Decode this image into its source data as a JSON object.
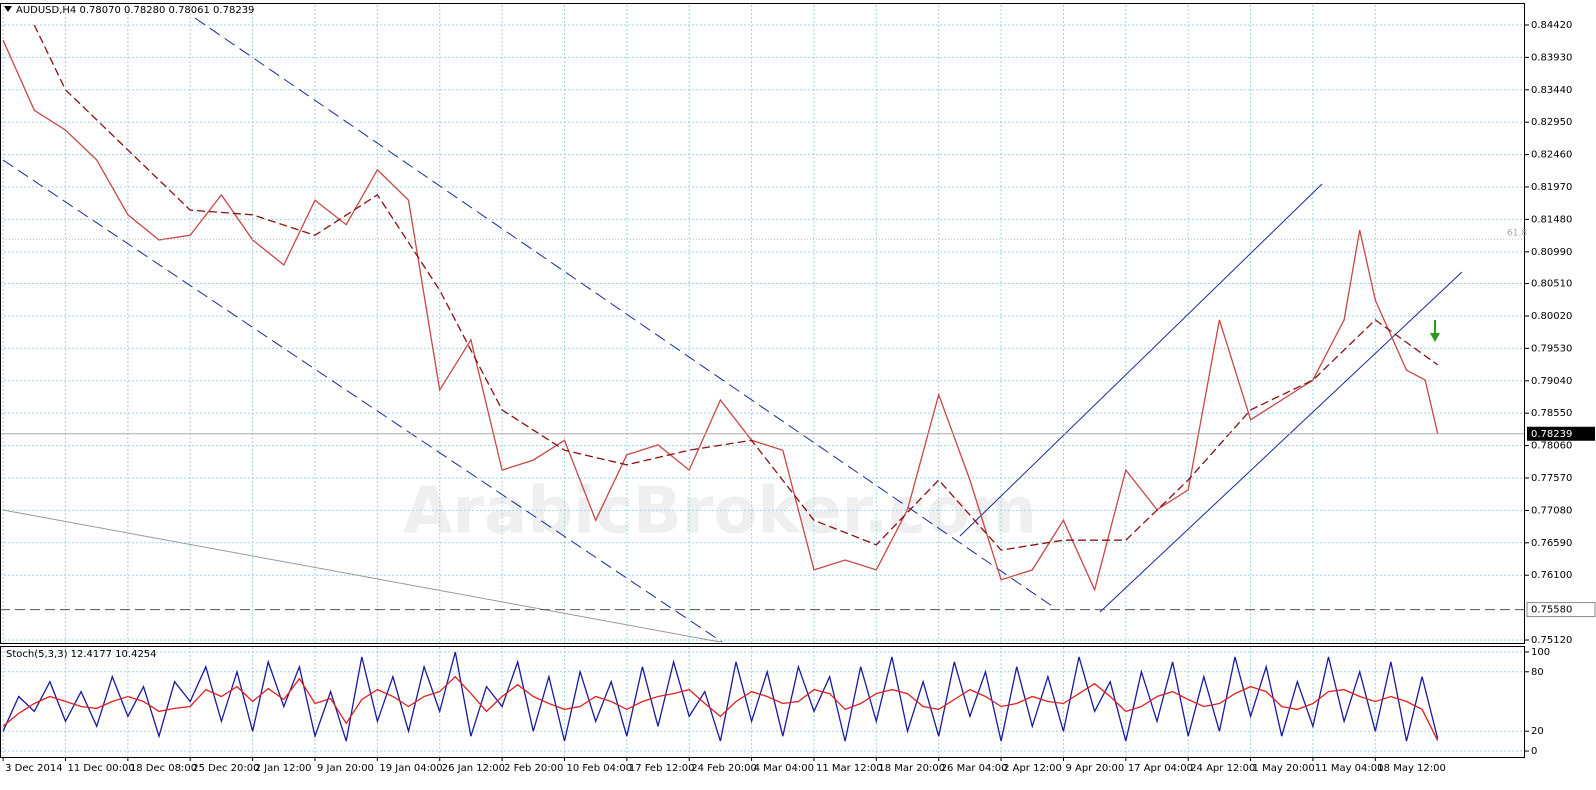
{
  "chart_data": [
    {
      "type": "line",
      "title": "AUDUSD,H4  0.78070 0.78280 0.78061 0.78239",
      "watermark": "ArabicBroker.com",
      "xlim": [
        -0.05,
        24.4
      ],
      "ylim": [
        0.75075,
        0.84722
      ],
      "yticks": [
        {
          "value": 0.8442,
          "label": "0.84420"
        },
        {
          "value": 0.8393,
          "label": "0.83930"
        },
        {
          "value": 0.8344,
          "label": "0.83440"
        },
        {
          "value": 0.8295,
          "label": "0.82950"
        },
        {
          "value": 0.8246,
          "label": "0.82460"
        },
        {
          "value": 0.8197,
          "label": "0.81970"
        },
        {
          "value": 0.8148,
          "label": "0.81480"
        },
        {
          "value": 0.8099,
          "label": "0.80990"
        },
        {
          "value": 0.8051,
          "label": "0.80510"
        },
        {
          "value": 0.8002,
          "label": "0.80020"
        },
        {
          "value": 0.7953,
          "label": "0.79530"
        },
        {
          "value": 0.7904,
          "label": "0.79040"
        },
        {
          "value": 0.7855,
          "label": "0.78550"
        },
        {
          "value": 0.7806,
          "label": "0.78060"
        },
        {
          "value": 0.7757,
          "label": "0.77570"
        },
        {
          "value": 0.7708,
          "label": "0.77080"
        },
        {
          "value": 0.7659,
          "label": "0.76590"
        },
        {
          "value": 0.761,
          "label": "0.76100"
        },
        {
          "value": 0.7512,
          "label": "0.75120"
        }
      ],
      "grid": true,
      "series": [
        {
          "color": "#c84848",
          "x": [
            0,
            0.5,
            1,
            1.5,
            2,
            2.5,
            3,
            3.5,
            4,
            4.5,
            5,
            5.5,
            6,
            6.5,
            7,
            7.5,
            8,
            8.5,
            9,
            9.5,
            10,
            10.5,
            11,
            11.5,
            12,
            12.5,
            13,
            13.5,
            14,
            14.5,
            15,
            15.5,
            16,
            16.5,
            17,
            17.5,
            18,
            18.5,
            19,
            19.5,
            20,
            20.5,
            21,
            21.5,
            21.75,
            22,
            22.5,
            22.8,
            23
          ],
          "values": [
            0.8419,
            0.8313,
            0.8283,
            0.8238,
            0.8155,
            0.8117,
            0.8124,
            0.8185,
            0.8117,
            0.8079,
            0.8177,
            0.814,
            0.8223,
            0.8177,
            0.789,
            0.7966,
            0.7769,
            0.7784,
            0.7814,
            0.7693,
            0.7792,
            0.7807,
            0.7769,
            0.7875,
            0.7814,
            0.7799,
            0.7618,
            0.7633,
            0.7618,
            0.7709,
            0.7883,
            0.7754,
            0.7603,
            0.7618,
            0.7693,
            0.7588,
            0.7769,
            0.7709,
            0.7739,
            0.7996,
            0.7845,
            0.7875,
            0.7905,
            0.7996,
            0.8132,
            0.8026,
            0.792,
            0.7905,
            0.7824
          ]
        },
        {
          "color": "#8b1010",
          "dashed": true,
          "x": [
            0.5,
            1,
            2,
            3,
            4,
            5,
            6,
            7,
            8,
            9,
            10,
            11,
            12,
            13,
            14,
            15,
            16,
            17,
            18,
            19,
            20,
            21,
            22,
            23
          ],
          "values": [
            0.8442,
            0.8344,
            0.8253,
            0.8162,
            0.8155,
            0.8124,
            0.8185,
            0.8041,
            0.786,
            0.7799,
            0.7777,
            0.7799,
            0.7814,
            0.7693,
            0.7656,
            0.7754,
            0.7648,
            0.7663,
            0.7663,
            0.7754,
            0.786,
            0.7905,
            0.7996,
            0.7928
          ]
        }
      ],
      "levels": [
        {
          "value": 0.7558,
          "label": "0.75580"
        }
      ],
      "fib": {
        "value": 0.8118,
        "label": "61.8"
      },
      "last_price": 0.78239
    },
    {
      "type": "line",
      "title": "Stoch(5,3,3) 12.4177 10.4254",
      "xlim": [
        -0.05,
        24.4
      ],
      "ylim": [
        -6,
        105
      ],
      "yticks": [
        100,
        80,
        20,
        0
      ],
      "grid": true,
      "xticks": [
        {
          "value": 0,
          "label": "3 Dec 2014"
        },
        {
          "value": 1,
          "label": "11 Dec 00:00"
        },
        {
          "value": 2,
          "label": "18 Dec 08:00"
        },
        {
          "value": 3,
          "label": "25 Dec 20:00"
        },
        {
          "value": 4,
          "label": "2 Jan 12:00"
        },
        {
          "value": 5,
          "label": "9 Jan 20:00"
        },
        {
          "value": 6,
          "label": "19 Jan 04:00"
        },
        {
          "value": 7,
          "label": "26 Jan 12:00"
        },
        {
          "value": 8,
          "label": "2 Feb 20:00"
        },
        {
          "value": 9,
          "label": "10 Feb 04:00"
        },
        {
          "value": 10,
          "label": "17 Feb 12:00"
        },
        {
          "value": 11,
          "label": "24 Feb 20:00"
        },
        {
          "value": 12,
          "label": "4 Mar 04:00"
        },
        {
          "value": 13,
          "label": "11 Mar 12:00"
        },
        {
          "value": 14,
          "label": "18 Mar 20:00"
        },
        {
          "value": 15,
          "label": "26 Mar 04:00"
        },
        {
          "value": 16,
          "label": "2 Apr 12:00"
        },
        {
          "value": 17,
          "label": "9 Apr 20:00"
        },
        {
          "value": 18,
          "label": "17 Apr 04:00"
        },
        {
          "value": 19,
          "label": "24 Apr 12:00"
        },
        {
          "value": 20,
          "label": "1 May 20:00"
        },
        {
          "value": 21,
          "label": "11 May 04:00"
        },
        {
          "value": 22,
          "label": "18 May 12:00"
        }
      ],
      "x": [
        0,
        0.25,
        0.5,
        0.75,
        1,
        1.25,
        1.5,
        1.75,
        2,
        2.25,
        2.5,
        2.75,
        3,
        3.25,
        3.5,
        3.75,
        4,
        4.25,
        4.5,
        4.75,
        5,
        5.25,
        5.5,
        5.75,
        6,
        6.25,
        6.5,
        6.75,
        7,
        7.25,
        7.5,
        7.75,
        8,
        8.25,
        8.5,
        8.75,
        9,
        9.25,
        9.5,
        9.75,
        10,
        10.25,
        10.5,
        10.75,
        11,
        11.25,
        11.5,
        11.75,
        12,
        12.25,
        12.5,
        12.75,
        13,
        13.25,
        13.5,
        13.75,
        14,
        14.25,
        14.5,
        14.75,
        15,
        15.25,
        15.5,
        15.75,
        16,
        16.25,
        16.5,
        16.75,
        17,
        17.25,
        17.5,
        17.75,
        18,
        18.25,
        18.5,
        18.75,
        19,
        19.25,
        19.5,
        19.75,
        20,
        20.25,
        20.5,
        20.75,
        21,
        21.25,
        21.5,
        21.75,
        22,
        22.25,
        22.5,
        22.75,
        23
      ],
      "series": [
        {
          "color": "#1a1aa0",
          "values": [
            20,
            55,
            40,
            70,
            30,
            60,
            25,
            75,
            35,
            65,
            15,
            70,
            50,
            85,
            30,
            80,
            20,
            90,
            45,
            85,
            15,
            60,
            10,
            95,
            30,
            75,
            20,
            85,
            40,
            100,
            15,
            65,
            45,
            90,
            20,
            75,
            10,
            80,
            30,
            70,
            15,
            85,
            25,
            90,
            35,
            60,
            10,
            90,
            30,
            80,
            15,
            85,
            40,
            75,
            10,
            85,
            30,
            95,
            20,
            70,
            15,
            90,
            35,
            80,
            10,
            85,
            25,
            75,
            20,
            95,
            40,
            70,
            10,
            80,
            30,
            90,
            15,
            75,
            20,
            95,
            35,
            85,
            15,
            70,
            25,
            95,
            30,
            80,
            20,
            90,
            10,
            75,
            12.4177
          ]
        },
        {
          "color": "#e02020",
          "values": [
            25,
            38,
            48,
            55,
            50,
            45,
            43,
            50,
            55,
            50,
            40,
            43,
            45,
            62,
            55,
            65,
            50,
            63,
            52,
            73,
            48,
            53,
            28,
            52,
            62,
            55,
            45,
            55,
            60,
            75,
            58,
            40,
            55,
            67,
            55,
            48,
            42,
            45,
            55,
            50,
            42,
            50,
            55,
            58,
            62,
            48,
            35,
            50,
            60,
            55,
            48,
            50,
            62,
            58,
            42,
            48,
            58,
            62,
            58,
            45,
            42,
            52,
            62,
            55,
            45,
            48,
            55,
            50,
            48,
            58,
            68,
            55,
            40,
            45,
            55,
            60,
            52,
            45,
            48,
            58,
            65,
            60,
            45,
            42,
            48,
            60,
            62,
            55,
            50,
            55,
            50,
            42,
            10.4254
          ]
        }
      ]
    }
  ]
}
